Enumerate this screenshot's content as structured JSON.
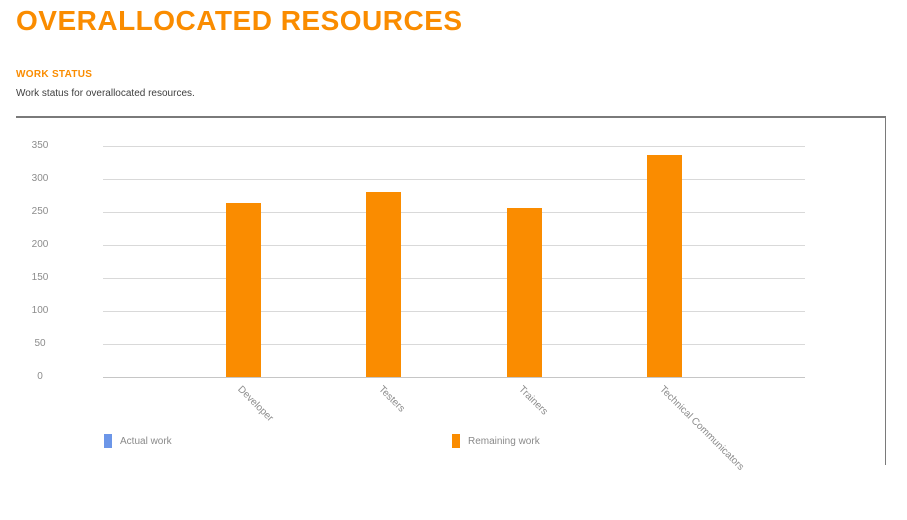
{
  "report": {
    "title": "OVERALLOCATED RESOURCES",
    "section_label": "WORK STATUS",
    "description": "Work status for overallocated resources."
  },
  "colors": {
    "accent": "#FA8C00",
    "actual_work": "#6C96E8",
    "remaining_work": "#FA8C00",
    "gridline": "#D9D9D9",
    "axis_text": "#8C8C8C",
    "legend_text": "#8A8A8A"
  },
  "chart_data": {
    "type": "bar",
    "stacked": true,
    "title": "WORK STATUS",
    "categories": [
      "Developer",
      "Testers",
      "Trainers",
      "Technical Communicators"
    ],
    "series": [
      {
        "name": "Actual work",
        "color": "#6C96E8",
        "values": [
          0,
          0,
          0,
          0
        ]
      },
      {
        "name": "Remaining work",
        "color": "#FA8C00",
        "values": [
          264,
          280,
          256,
          336
        ]
      }
    ],
    "xlabel": "",
    "ylabel": "",
    "ylim": [
      0,
      350
    ],
    "yticks": [
      0,
      50,
      100,
      150,
      200,
      250,
      300,
      350
    ],
    "grid": true,
    "legend_position": "bottom"
  }
}
